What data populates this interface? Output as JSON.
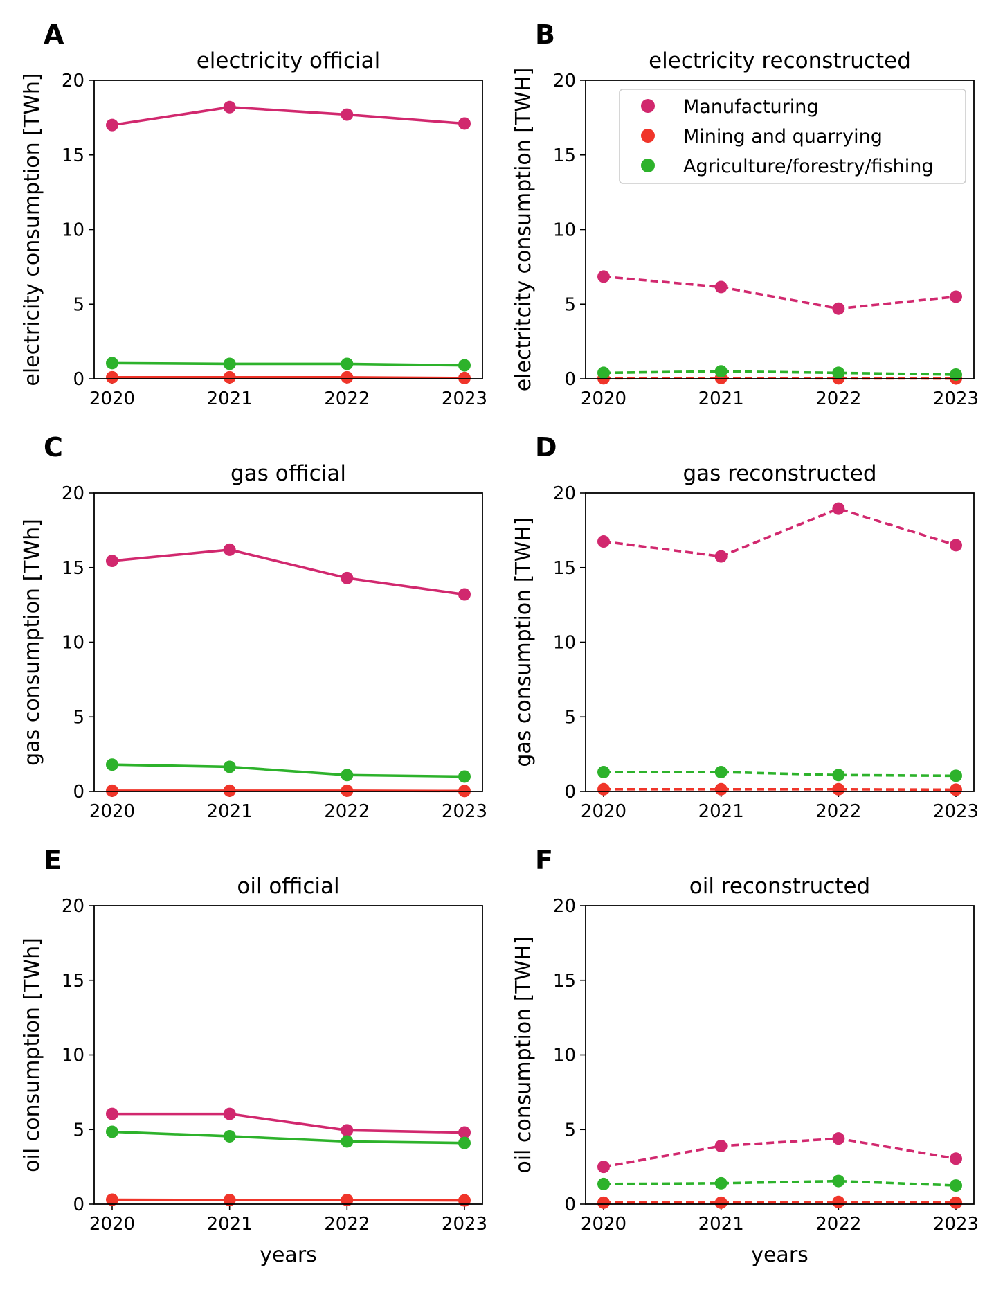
{
  "colors": {
    "Manufacturing": "#d1286e",
    "Mining and quarrying": "#f0352a",
    "Agriculture/forestry/fishing": "#2db22b"
  },
  "legend": [
    "Manufacturing",
    "Mining and quarrying",
    "Agriculture/forestry/fishing"
  ],
  "chart_data": [
    {
      "panel": "A",
      "type": "line",
      "title": "electricity official",
      "xlabel": "",
      "ylabel": "electricity consumption [TWh]",
      "categories": [
        "2020",
        "2021",
        "2022",
        "2023"
      ],
      "ylim": [
        0,
        20
      ],
      "yticks": [
        0,
        5,
        10,
        15,
        20
      ],
      "linestyle": "solid",
      "series": [
        {
          "name": "Manufacturing",
          "values": [
            17.0,
            18.2,
            17.7,
            17.1
          ]
        },
        {
          "name": "Mining and quarrying",
          "values": [
            0.1,
            0.1,
            0.1,
            0.05
          ]
        },
        {
          "name": "Agriculture/forestry/fishing",
          "values": [
            1.05,
            1.0,
            1.0,
            0.9
          ]
        }
      ]
    },
    {
      "panel": "B",
      "type": "line",
      "title": "electricity reconstructed",
      "xlabel": "",
      "ylabel": "electritcity consumption [TWH]",
      "categories": [
        "2020",
        "2021",
        "2022",
        "2023"
      ],
      "ylim": [
        0,
        20
      ],
      "yticks": [
        0,
        5,
        10,
        15,
        20
      ],
      "linestyle": "dashed",
      "legend": "top-right",
      "series": [
        {
          "name": "Manufacturing",
          "values": [
            6.85,
            6.15,
            4.7,
            5.5
          ]
        },
        {
          "name": "Mining and quarrying",
          "values": [
            0.03,
            0.05,
            0.03,
            0.02
          ]
        },
        {
          "name": "Agriculture/forestry/fishing",
          "values": [
            0.4,
            0.5,
            0.4,
            0.28
          ]
        }
      ]
    },
    {
      "panel": "C",
      "type": "line",
      "title": "gas official",
      "xlabel": "",
      "ylabel": "gas consumption [TWh]",
      "categories": [
        "2020",
        "2021",
        "2022",
        "2023"
      ],
      "ylim": [
        0,
        20
      ],
      "yticks": [
        0,
        5,
        10,
        15,
        20
      ],
      "linestyle": "solid",
      "series": [
        {
          "name": "Manufacturing",
          "values": [
            15.45,
            16.2,
            14.3,
            13.2
          ]
        },
        {
          "name": "Mining and quarrying",
          "values": [
            0.05,
            0.05,
            0.05,
            0.03
          ]
        },
        {
          "name": "Agriculture/forestry/fishing",
          "values": [
            1.8,
            1.65,
            1.1,
            1.0
          ]
        }
      ]
    },
    {
      "panel": "D",
      "type": "line",
      "title": "gas reconstructed",
      "xlabel": "",
      "ylabel": "gas consumption [TWH]",
      "categories": [
        "2020",
        "2021",
        "2022",
        "2023"
      ],
      "ylim": [
        0,
        20
      ],
      "yticks": [
        0,
        5,
        10,
        15,
        20
      ],
      "linestyle": "dashed",
      "series": [
        {
          "name": "Manufacturing",
          "values": [
            16.75,
            15.75,
            18.95,
            16.5
          ]
        },
        {
          "name": "Mining and quarrying",
          "values": [
            0.15,
            0.15,
            0.15,
            0.12
          ]
        },
        {
          "name": "Agriculture/forestry/fishing",
          "values": [
            1.3,
            1.3,
            1.1,
            1.05
          ]
        }
      ]
    },
    {
      "panel": "E",
      "type": "line",
      "title": "oil official",
      "xlabel": "years",
      "ylabel": "oil consumption [TWh]",
      "categories": [
        "2020",
        "2021",
        "2022",
        "2023"
      ],
      "ylim": [
        0,
        20
      ],
      "yticks": [
        0,
        5,
        10,
        15,
        20
      ],
      "linestyle": "solid",
      "series": [
        {
          "name": "Manufacturing",
          "values": [
            6.05,
            6.05,
            4.95,
            4.8
          ]
        },
        {
          "name": "Mining and quarrying",
          "values": [
            0.3,
            0.28,
            0.28,
            0.25
          ]
        },
        {
          "name": "Agriculture/forestry/fishing",
          "values": [
            4.85,
            4.55,
            4.2,
            4.1
          ]
        }
      ]
    },
    {
      "panel": "F",
      "type": "line",
      "title": "oil reconstructed",
      "xlabel": "years",
      "ylabel": "oil consumption [TWH]",
      "categories": [
        "2020",
        "2021",
        "2022",
        "2023"
      ],
      "ylim": [
        0,
        20
      ],
      "yticks": [
        0,
        5,
        10,
        15,
        20
      ],
      "linestyle": "dashed",
      "series": [
        {
          "name": "Manufacturing",
          "values": [
            2.5,
            3.9,
            4.4,
            3.05
          ]
        },
        {
          "name": "Mining and quarrying",
          "values": [
            0.1,
            0.1,
            0.15,
            0.1
          ]
        },
        {
          "name": "Agriculture/forestry/fishing",
          "values": [
            1.35,
            1.4,
            1.55,
            1.25
          ]
        }
      ]
    }
  ]
}
